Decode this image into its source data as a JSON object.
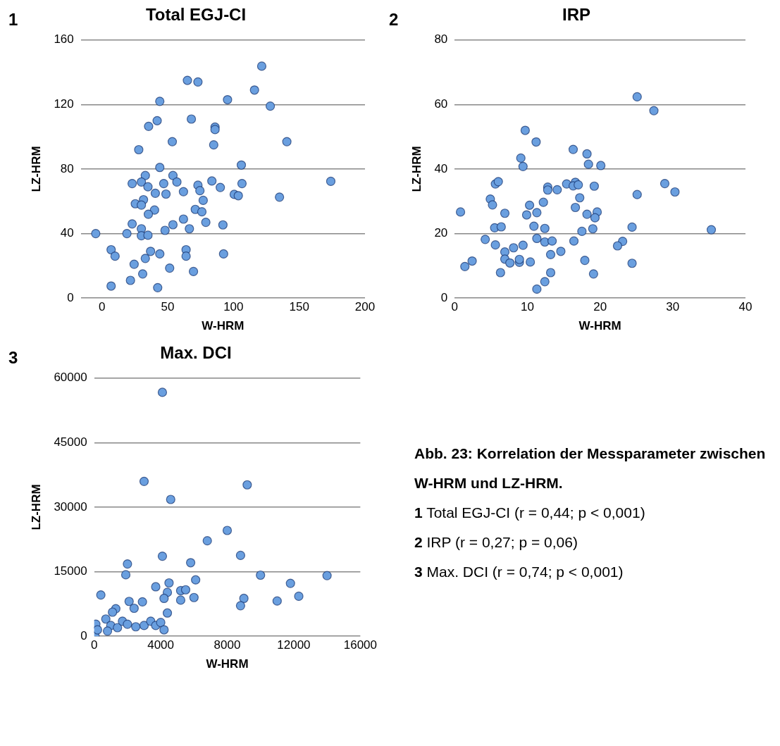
{
  "chart_data": [
    {
      "type": "scatter",
      "title": "Total EGJ-CI",
      "xlabel": "W-HRM",
      "ylabel": "LZ-HRM",
      "annotations": [
        "1"
      ],
      "color": "#6a9fdf",
      "marker": "circle",
      "grid": "y",
      "xlim": [
        -16,
        200
      ],
      "xticks": [
        0,
        50,
        100,
        150,
        200
      ],
      "ylim": [
        0,
        160
      ],
      "yticks": [
        0,
        40,
        80,
        120,
        160
      ],
      "x": [
        121.5,
        65,
        73,
        116,
        44,
        95.5,
        128,
        42,
        35.5,
        68,
        86,
        86,
        53.5,
        85,
        140.6,
        28,
        106,
        44,
        33,
        54,
        23,
        30,
        35,
        47,
        57,
        40.6,
        48.7,
        62,
        73,
        74.5,
        83.6,
        90,
        106.5,
        174,
        100.6,
        103.7,
        135,
        77,
        25.4,
        31.6,
        30,
        40,
        35.3,
        71,
        76,
        23,
        62,
        54,
        30,
        48,
        66.5,
        79,
        92,
        -4.7,
        19,
        30,
        35,
        7,
        10,
        37,
        44,
        33,
        64,
        64,
        92.5,
        24.5,
        51.5,
        69.6,
        31,
        21.7,
        7,
        42.4
      ],
      "values": [
        143.8,
        135,
        134,
        129,
        122,
        123,
        119,
        110,
        106.5,
        111,
        106,
        104.5,
        97,
        95,
        97,
        92,
        82.5,
        81,
        76,
        76,
        71,
        72,
        69,
        71,
        72,
        65,
        64.5,
        66,
        70,
        66.6,
        72.6,
        68.6,
        71,
        72.4,
        64.3,
        63.5,
        62.6,
        60.6,
        58.5,
        61,
        57.7,
        54.6,
        52,
        55,
        53.5,
        46,
        49,
        45.5,
        43,
        42,
        43,
        47,
        45.4,
        40,
        40,
        38.7,
        39,
        30,
        26,
        29,
        27.4,
        24.6,
        30,
        26,
        27.4,
        21,
        18.6,
        16.5,
        15,
        11,
        7.5,
        6.5
      ]
    },
    {
      "type": "scatter",
      "title": "IRP",
      "xlabel": "W-HRM",
      "ylabel": "LZ-HRM",
      "annotations": [
        "2"
      ],
      "color": "#6a9fdf",
      "marker": "circle",
      "grid": "y",
      "xlim": [
        0,
        40
      ],
      "xticks": [
        0,
        10,
        20,
        30,
        40
      ],
      "ylim": [
        0,
        80
      ],
      "yticks": [
        0,
        20,
        40,
        60,
        80
      ],
      "x": [
        25.1,
        27.4,
        9.7,
        11.2,
        16.3,
        18.2,
        9.1,
        9.4,
        18.4,
        20.1,
        5.6,
        6,
        12.8,
        12.8,
        14.1,
        15.4,
        16.6,
        16.3,
        17,
        19.2,
        28.9,
        30.3,
        25.1,
        17.2,
        4.9,
        5.2,
        10.3,
        12.2,
        16.6,
        0.8,
        6.9,
        9.9,
        11.3,
        18.2,
        19.6,
        19.3,
        10.9,
        12.4,
        5.5,
        6.4,
        17.5,
        19,
        24.4,
        35.3,
        4.2,
        5.6,
        11.3,
        12.4,
        13.4,
        16.4,
        23.1,
        22.4,
        14.6,
        13.2,
        6.9,
        8.1,
        9.4,
        6.9,
        7.6,
        8.9,
        8.9,
        10.4,
        17.9,
        24.4,
        1.4,
        2.4,
        6.3,
        13.2,
        19.1,
        12.4,
        11.3
      ],
      "values": [
        62.4,
        58.1,
        52,
        48.4,
        46.1,
        44.7,
        43.4,
        40.8,
        41.5,
        41.1,
        35.4,
        36.1,
        34.4,
        33.5,
        33.6,
        35.4,
        35.9,
        34.8,
        35.1,
        34.7,
        35.5,
        32.9,
        32.1,
        31.1,
        30.7,
        28.9,
        28.8,
        29.7,
        28.1,
        26.7,
        26.3,
        25.8,
        26.5,
        26,
        26.7,
        24.9,
        22.3,
        21.6,
        21.8,
        22.1,
        20.7,
        21.5,
        22,
        21.2,
        18.2,
        16.5,
        18.5,
        17.4,
        17.7,
        17.7,
        17.6,
        16.2,
        14.5,
        13.5,
        14.3,
        15.6,
        16.4,
        12.1,
        10.9,
        11.1,
        12,
        11.2,
        11.7,
        10.8,
        9.8,
        11.5,
        7.9,
        7.9,
        7.5,
        5.1,
        2.8
      ]
    },
    {
      "type": "scatter",
      "title": "Max. DCI",
      "xlabel": "W-HRM",
      "ylabel": "LZ-HRM",
      "annotations": [
        "3"
      ],
      "color": "#6a9fdf",
      "marker": "circle",
      "grid": "y",
      "xlim": [
        0,
        16000
      ],
      "xticks": [
        0,
        4000,
        8000,
        12000,
        16000
      ],
      "ylim": [
        0,
        60000
      ],
      "yticks": [
        0,
        15000,
        30000,
        45000,
        60000
      ],
      "x": [
        4100,
        3000,
        9200,
        4600,
        8000,
        6800,
        4100,
        8800,
        2000,
        1900,
        5800,
        10000,
        14000,
        11800,
        12300,
        11000,
        9000,
        8800,
        6100,
        4500,
        3700,
        4400,
        4200,
        5200,
        5500,
        5200,
        6000,
        400,
        2100,
        2900,
        2400,
        1300,
        1100,
        700,
        4400,
        100,
        50,
        1000,
        1400,
        1700,
        2000,
        3000,
        3400,
        3700,
        4000,
        4200,
        800,
        2500,
        200
      ],
      "values": [
        56700,
        36000,
        35200,
        31800,
        24600,
        22200,
        18600,
        18800,
        16800,
        14300,
        17100,
        14200,
        14100,
        12300,
        9300,
        8200,
        8800,
        7100,
        13100,
        12400,
        11500,
        10200,
        8800,
        10600,
        10800,
        8400,
        9000,
        9600,
        8100,
        8000,
        6500,
        6400,
        5600,
        4000,
        5400,
        2800,
        0,
        2500,
        2000,
        3500,
        2800,
        2500,
        3500,
        2500,
        3200,
        1500,
        1200,
        2200,
        1500
      ]
    },
    {
      "type": "other",
      "title": "Abb. 23: Korrelation der Messparameter zwischen W-HRM und LZ-HRM.",
      "annotations": [
        "1 Total EGJ-CI (r = 0,44; p < 0,001)",
        "2 IRP (r = 0,27; p = 0,06)",
        "3 Max. DCI (r = 0,74; p < 0,001)"
      ]
    }
  ]
}
